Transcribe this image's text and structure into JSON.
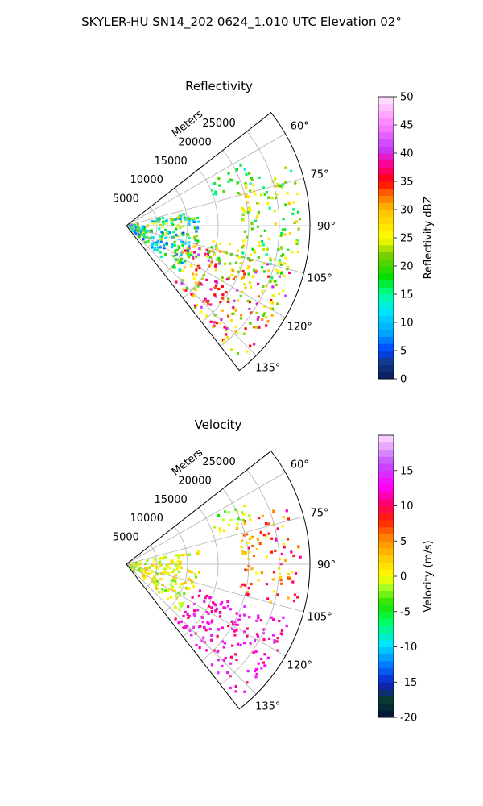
{
  "figure": {
    "title": "SKYLER-HU  SN14_202  0624_1.010 UTC Elevation 02°"
  },
  "chart_data": [
    {
      "type": "heatmap",
      "subtype": "polar-sector",
      "title": "Reflectivity",
      "radial_axis_label": "Meters",
      "radial_ticks": [
        5000,
        10000,
        15000,
        20000,
        25000
      ],
      "radial_range": [
        0,
        30000
      ],
      "angular_ticks": [
        "60°",
        "75°",
        "90°",
        "105°",
        "120°",
        "135°"
      ],
      "angular_tick_values": [
        60,
        75,
        90,
        105,
        120,
        135
      ],
      "angular_range": [
        52,
        142
      ],
      "grid": true,
      "colorbar": {
        "label": "Reflectivity dBZ",
        "ticks": [
          0,
          5,
          10,
          15,
          20,
          25,
          30,
          35,
          40,
          45,
          50
        ],
        "range": [
          0,
          50
        ]
      },
      "echo_regions": [
        {
          "az": [
            105,
            140
          ],
          "range_m": [
            10000,
            28500
          ],
          "value": [
            20,
            42
          ]
        },
        {
          "az": [
            100,
            112
          ],
          "range_m": [
            14000,
            27000
          ],
          "value": [
            15,
            28
          ]
        },
        {
          "az": [
            70,
            105
          ],
          "range_m": [
            19000,
            28500
          ],
          "value": [
            15,
            30
          ]
        },
        {
          "az": [
            62,
            72
          ],
          "range_m": [
            15000,
            22000
          ],
          "value": [
            12,
            22
          ]
        },
        {
          "az": [
            78,
            132
          ],
          "range_m": [
            0,
            12000
          ],
          "value": [
            5,
            25
          ]
        }
      ]
    },
    {
      "type": "heatmap",
      "subtype": "polar-sector",
      "title": "Velocity",
      "radial_axis_label": "Meters",
      "radial_ticks": [
        5000,
        10000,
        15000,
        20000,
        25000
      ],
      "radial_range": [
        0,
        30000
      ],
      "angular_ticks": [
        "60°",
        "75°",
        "90°",
        "105°",
        "120°",
        "135°"
      ],
      "angular_tick_values": [
        60,
        75,
        90,
        105,
        120,
        135
      ],
      "angular_range": [
        52,
        142
      ],
      "grid": true,
      "colorbar": {
        "label": "Velocity (m/s)",
        "ticks": [
          -20,
          -15,
          -10,
          -5,
          0,
          5,
          10,
          15
        ],
        "range": [
          -20,
          20
        ]
      },
      "echo_regions": [
        {
          "az": [
            108,
            140
          ],
          "range_m": [
            12000,
            28500
          ],
          "value": [
            10,
            15
          ]
        },
        {
          "az": [
            70,
            105
          ],
          "range_m": [
            19000,
            28500
          ],
          "value": [
            0,
            12
          ]
        },
        {
          "az": [
            62,
            72
          ],
          "range_m": [
            15000,
            22000
          ],
          "value": [
            -4,
            2
          ]
        },
        {
          "az": [
            78,
            132
          ],
          "range_m": [
            0,
            12000
          ],
          "value": [
            -3,
            3
          ]
        }
      ]
    }
  ]
}
